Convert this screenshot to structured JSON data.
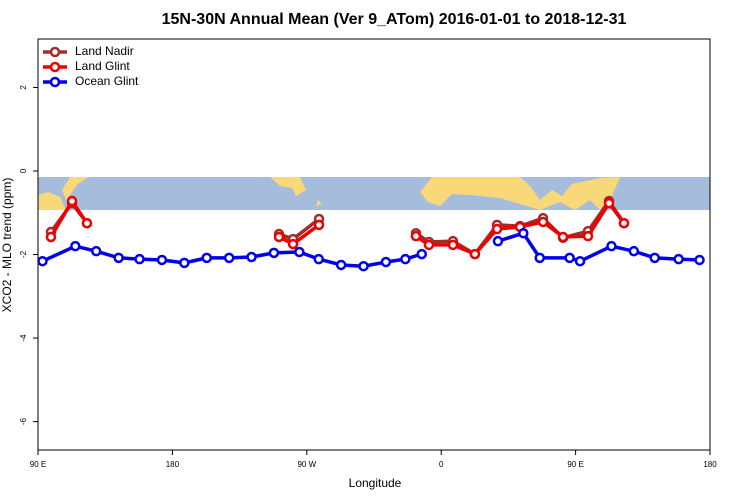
{
  "chart_data": {
    "type": "line",
    "title": "15N-30N Annual Mean (Ver 9_ATom)   2016-01-01 to 2018-12-31",
    "x_label": "Longitude",
    "y_label": "XCO2 - MLO trend (ppm)",
    "xlim": [
      90,
      540
    ],
    "xticks": [
      {
        "value": 90,
        "label": "90 E"
      },
      {
        "value": 180,
        "label": "180"
      },
      {
        "value": 270,
        "label": "90 W"
      },
      {
        "value": 360,
        "label": "0"
      },
      {
        "value": 450,
        "label": "90 E"
      },
      {
        "value": 540,
        "label": "180"
      }
    ],
    "ylim": [
      -6.68,
      3.16
    ],
    "yticks": [
      -6,
      -4,
      -2,
      0,
      2
    ],
    "legend": "top-left",
    "series": [
      {
        "name": "Land Nadir",
        "color": "#a52a2a",
        "x": [
          98.7,
          112.8,
          122.8,
          185,
          251.4,
          260.8,
          278.2,
          310,
          343.1,
          351.8,
          367.9,
          382.6,
          397.4,
          412.8,
          428.2,
          441.6,
          458.3,
          472.4,
          482.4
        ],
        "values": [
          -1.46,
          -0.77,
          -1.25,
          null,
          -1.51,
          -1.63,
          -1.15,
          null,
          -1.49,
          -1.7,
          -1.68,
          -1.99,
          -1.29,
          -1.32,
          -1.13,
          -1.6,
          -1.44,
          -0.72,
          -1.25
        ]
      },
      {
        "name": "Land Glint",
        "color": "#ee0000",
        "x": [
          98.7,
          112.8,
          122.8,
          185,
          251.4,
          260.8,
          278.2,
          310,
          343.1,
          351.8,
          367.9,
          382.6,
          397.4,
          412.8,
          428.2,
          441.6,
          458.3,
          472.4,
          482.4
        ],
        "values": [
          -1.58,
          -0.72,
          -1.25,
          null,
          -1.58,
          -1.75,
          -1.29,
          null,
          -1.56,
          -1.77,
          -1.77,
          -1.99,
          -1.39,
          -1.34,
          -1.22,
          -1.58,
          -1.56,
          -0.77,
          -1.25
        ]
      },
      {
        "name": "Ocean Glint",
        "color": "#0000ee",
        "x": [
          93,
          115,
          129,
          144,
          158,
          173,
          188,
          203,
          218,
          233,
          248,
          265,
          278,
          293,
          308,
          323,
          336,
          347,
          372,
          398,
          415,
          426,
          446,
          453,
          474,
          489,
          503,
          519,
          533
        ],
        "values": [
          -2.16,
          -1.8,
          -1.92,
          -2.08,
          -2.11,
          -2.13,
          -2.2,
          -2.08,
          -2.08,
          -2.06,
          -1.96,
          -1.94,
          -2.11,
          -2.25,
          -2.28,
          -2.18,
          -2.11,
          -1.99,
          null,
          -1.68,
          -1.49,
          -2.08,
          -2.08,
          -2.16,
          -1.8,
          -1.92,
          -2.08,
          -2.11,
          -2.13
        ]
      }
    ]
  }
}
